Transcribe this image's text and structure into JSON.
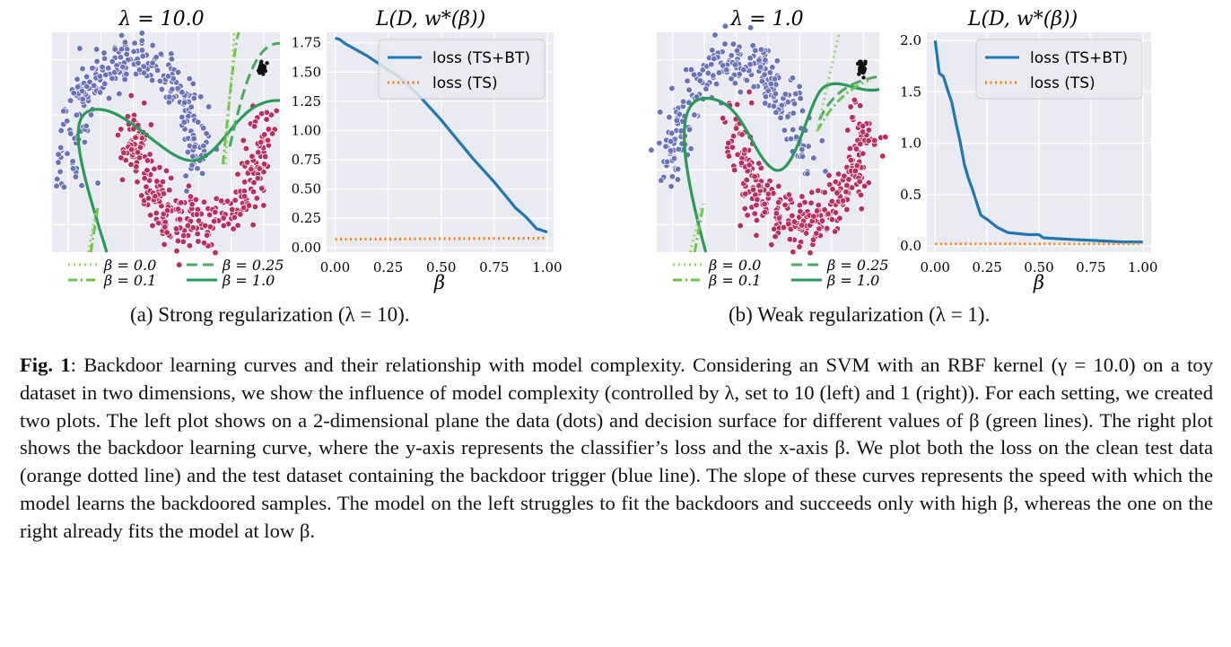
{
  "panels": [
    {
      "id": "a",
      "scatter_title": "λ = 10.0",
      "loss_title": "L(D, w*(β))",
      "subcaption": "(a) Strong regularization (λ = 10).",
      "scatter_legend": [
        "β = 0.0",
        "β = 0.25",
        "β = 0.1",
        "β = 1.0"
      ]
    },
    {
      "id": "b",
      "scatter_title": "λ = 1.0",
      "loss_title": "L(D, w*(β))",
      "subcaption": "(b) Weak regularization (λ = 1).",
      "scatter_legend": [
        "β = 0.0",
        "β = 0.25",
        "β = 0.1",
        "β = 1.0"
      ]
    }
  ],
  "colors": {
    "class_blue": "#6a72b8",
    "class_red": "#b8305f",
    "trigger": "#111111",
    "loss_tsbt": "#1f77b4",
    "loss_ts": "#ff7f0e",
    "beta_0": "#9ed36a",
    "beta_01": "#6cc24a",
    "beta_025": "#4aa860",
    "beta_1": "#2a9a5a"
  },
  "chart_data": [
    {
      "type": "line",
      "title": "L(D, w*(β))",
      "xlabel": "β",
      "ylabel": "",
      "xlim": [
        0,
        1
      ],
      "ylim": [
        0,
        1.8
      ],
      "xticks": [
        "0.00",
        "0.25",
        "0.50",
        "0.75",
        "1.00"
      ],
      "yticks": [
        "0.00",
        "0.25",
        "0.50",
        "0.75",
        "1.00",
        "1.25",
        "1.50",
        "1.75"
      ],
      "grid": true,
      "legend": "top-right",
      "series": [
        {
          "name": "loss (TS+BT)",
          "style": "solid",
          "x": [
            0.0,
            0.02,
            0.05,
            0.1,
            0.15,
            0.2,
            0.25,
            0.3,
            0.35,
            0.4,
            0.45,
            0.5,
            0.55,
            0.6,
            0.65,
            0.7,
            0.75,
            0.8,
            0.85,
            0.9,
            0.95,
            0.97,
            1.0
          ],
          "y": [
            1.79,
            1.78,
            1.74,
            1.69,
            1.64,
            1.58,
            1.52,
            1.46,
            1.38,
            1.29,
            1.19,
            1.09,
            0.98,
            0.87,
            0.76,
            0.66,
            0.56,
            0.45,
            0.34,
            0.26,
            0.16,
            0.15,
            0.13
          ]
        },
        {
          "name": "loss (TS)",
          "style": "dotted",
          "x": [
            0.0,
            1.0
          ],
          "y": [
            0.07,
            0.08
          ]
        }
      ]
    },
    {
      "type": "line",
      "title": "L(D, w*(β))",
      "xlabel": "β",
      "ylabel": "",
      "xlim": [
        0,
        1
      ],
      "ylim": [
        0,
        2.0
      ],
      "xticks": [
        "0.00",
        "0.25",
        "0.50",
        "0.75",
        "1.00"
      ],
      "yticks": [
        "0.0",
        "0.5",
        "1.0",
        "1.5",
        "2.0"
      ],
      "grid": true,
      "legend": "top-right",
      "series": [
        {
          "name": "loss (TS+BT)",
          "style": "solid",
          "x": [
            0.0,
            0.02,
            0.04,
            0.06,
            0.08,
            0.1,
            0.12,
            0.14,
            0.16,
            0.18,
            0.2,
            0.22,
            0.25,
            0.3,
            0.35,
            0.4,
            0.45,
            0.5,
            0.52,
            0.6,
            0.7,
            0.8,
            0.9,
            1.0
          ],
          "y": [
            2.0,
            1.68,
            1.65,
            1.52,
            1.4,
            1.2,
            1.02,
            0.8,
            0.66,
            0.55,
            0.42,
            0.3,
            0.26,
            0.18,
            0.13,
            0.12,
            0.11,
            0.11,
            0.08,
            0.07,
            0.06,
            0.05,
            0.04,
            0.04
          ]
        },
        {
          "name": "loss (TS)",
          "style": "dotted",
          "x": [
            0.0,
            1.0
          ],
          "y": [
            0.02,
            0.02
          ]
        }
      ]
    }
  ],
  "caption": {
    "label": "Fig. 1",
    "text": ": Backdoor learning curves and their relationship with model complexity. Considering an SVM with an RBF kernel (γ = 10.0) on a toy dataset in two dimensions, we show the influence of model complexity (controlled by λ, set to 10 (left) and 1 (right)). For each setting, we created two plots. The left plot shows on a 2-dimensional plane the data (dots) and decision surface for different values of β (green lines). The right plot shows the backdoor learning curve, where the y-axis represents the classifier’s loss and the x-axis β. We plot both the loss on the clean test data (orange dotted line) and the test dataset containing the backdoor trigger (blue line). The slope of these curves represents the speed with which the model learns the backdoored samples. The model on the left struggles to fit the backdoors and succeeds only with high β, whereas the one on the right already fits the model at low β."
  }
}
